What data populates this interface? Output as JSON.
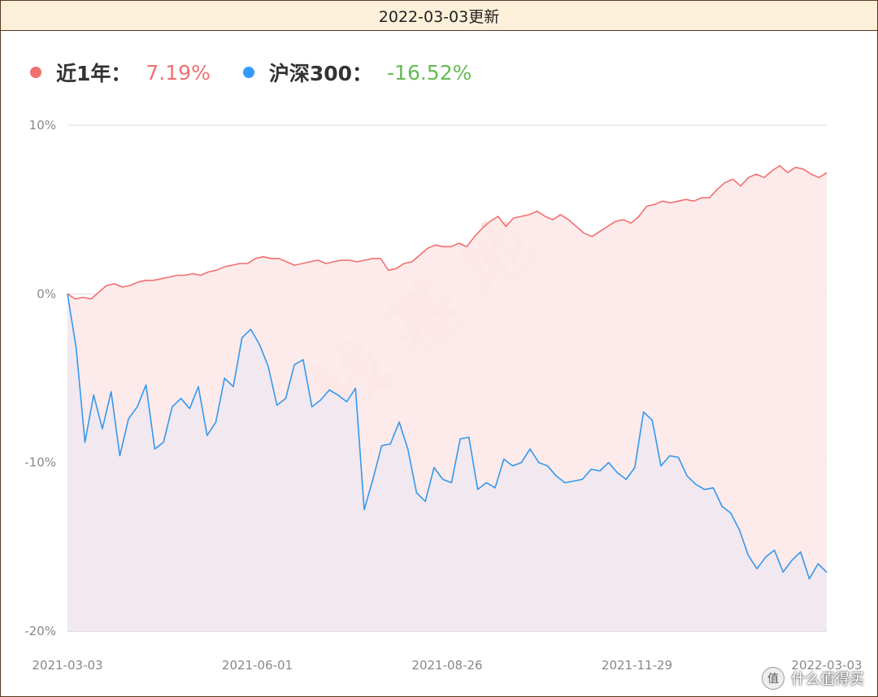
{
  "header": {
    "title": "2022-03-03更新"
  },
  "legend": [
    {
      "name": "近1年：",
      "value": "7.19%",
      "dot_color": "#f07070",
      "value_color": "#f07070"
    },
    {
      "name": "沪深300：",
      "value": "-16.52%",
      "dot_color": "#3399ff",
      "value_color": "#66bb55"
    }
  ],
  "watermark": "搞钱基地",
  "credit": {
    "icon": "worth-buying-logo-icon",
    "badge_text": "值",
    "text": "什么值得买"
  },
  "chart_data": {
    "type": "area",
    "ylim": [
      -20,
      10
    ],
    "yticks": [
      10,
      0,
      -10,
      -20
    ],
    "ytick_labels": [
      "10%",
      "0%",
      "-10%",
      "-20%"
    ],
    "x_tick_labels": [
      "2021-03-03",
      "2021-06-01",
      "2021-08-26",
      "2021-11-29",
      "2022-03-03"
    ],
    "grid": true,
    "series": [
      {
        "name": "近1年",
        "color": "#f07070",
        "fill": "#fde8e8",
        "values": [
          0,
          -0.3,
          -0.2,
          -0.3,
          0.1,
          0.5,
          0.6,
          0.4,
          0.5,
          0.7,
          0.8,
          0.8,
          0.9,
          1.0,
          1.1,
          1.1,
          1.2,
          1.1,
          1.3,
          1.4,
          1.6,
          1.7,
          1.8,
          1.8,
          2.1,
          2.2,
          2.1,
          2.1,
          1.9,
          1.7,
          1.8,
          1.9,
          2.0,
          1.8,
          1.9,
          2.0,
          2.0,
          1.9,
          2.0,
          2.1,
          2.1,
          1.4,
          1.5,
          1.8,
          1.9,
          2.3,
          2.7,
          2.9,
          2.8,
          2.8,
          3.0,
          2.8,
          3.4,
          3.9,
          4.3,
          4.6,
          4.0,
          4.5,
          4.6,
          4.7,
          4.9,
          4.6,
          4.4,
          4.7,
          4.4,
          4.0,
          3.6,
          3.4,
          3.7,
          4.0,
          4.3,
          4.4,
          4.2,
          4.6,
          5.2,
          5.3,
          5.5,
          5.4,
          5.5,
          5.6,
          5.5,
          5.7,
          5.7,
          6.2,
          6.6,
          6.8,
          6.4,
          6.9,
          7.1,
          6.9,
          7.3,
          7.6,
          7.2,
          7.5,
          7.4,
          7.1,
          6.9,
          7.19
        ]
      },
      {
        "name": "沪深300",
        "color": "#3399ee",
        "fill": "#efe8f1",
        "values": [
          0,
          -3.2,
          -8.8,
          -6.0,
          -8.0,
          -5.8,
          -9.6,
          -7.4,
          -6.7,
          -5.4,
          -9.2,
          -8.8,
          -6.7,
          -6.2,
          -6.8,
          -5.5,
          -8.4,
          -7.6,
          -5.0,
          -5.5,
          -2.6,
          -2.1,
          -3.0,
          -4.3,
          -6.6,
          -6.2,
          -4.2,
          -3.9,
          -6.7,
          -6.3,
          -5.7,
          -6.0,
          -6.4,
          -5.6,
          -12.8,
          -11.0,
          -9.0,
          -8.9,
          -7.6,
          -9.2,
          -11.8,
          -12.3,
          -10.3,
          -11.0,
          -11.2,
          -8.6,
          -8.5,
          -11.6,
          -11.2,
          -11.5,
          -9.8,
          -10.2,
          -10.0,
          -9.2,
          -10.0,
          -10.2,
          -10.8,
          -11.2,
          -11.1,
          -11.0,
          -10.4,
          -10.5,
          -10.0,
          -10.6,
          -11.0,
          -10.3,
          -7.0,
          -7.5,
          -10.2,
          -9.6,
          -9.7,
          -10.8,
          -11.3,
          -11.6,
          -11.5,
          -12.6,
          -13.0,
          -14.0,
          -15.5,
          -16.3,
          -15.6,
          -15.2,
          -16.5,
          -15.8,
          -15.3,
          -16.9,
          -16.0,
          -16.52
        ]
      }
    ]
  }
}
